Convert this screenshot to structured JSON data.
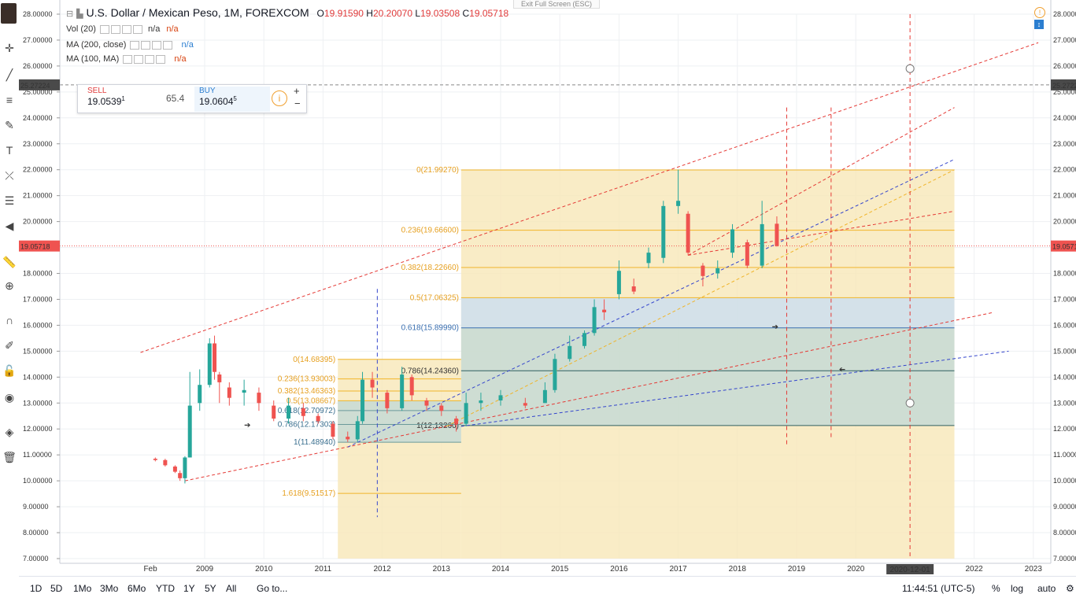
{
  "header": {
    "exit_fullscreen": "Exit Full Screen (ESC)",
    "symbol_title": "U.S. Dollar / Mexican Peso, 1M, FOREXCOM",
    "ohlc": {
      "o_label": "O",
      "o": "19.91590",
      "h_label": "H",
      "h": "20.20070",
      "l_label": "L",
      "l": "19.03508",
      "c_label": "C",
      "c": "19.05718"
    }
  },
  "studies": [
    {
      "name": "Vol (20)",
      "values": [
        "n/a",
        "n/a"
      ]
    },
    {
      "name": "MA (200, close)",
      "values": [
        "n/a"
      ]
    },
    {
      "name": "MA (100, MA)",
      "values": [
        "n/a"
      ]
    }
  ],
  "trade_panel": {
    "sell_label": "SELL",
    "sell_value": "19.0539",
    "sell_sup": "1",
    "spread": "65.4",
    "buy_label": "BUY",
    "buy_value": "19.0604",
    "buy_sup": "5"
  },
  "price_axis": {
    "labels": [
      "28.00000",
      "27.00000",
      "26.00000",
      "25.00000",
      "24.00000",
      "23.00000",
      "22.00000",
      "21.00000",
      "20.00000",
      "19.00000",
      "18.00000",
      "17.00000",
      "16.00000",
      "15.00000",
      "14.00000",
      "13.00000",
      "12.00000",
      "11.00000",
      "10.00000",
      "9.00000",
      "8.00000",
      "7.00000"
    ],
    "crosshair_price": "25.27224",
    "last_price": "19.05718"
  },
  "time_axis": {
    "labels": [
      "Feb",
      "2009",
      "2010",
      "2011",
      "2012",
      "2013",
      "2014",
      "2015",
      "2016",
      "2017",
      "2018",
      "2019",
      "2020",
      "2022",
      "2023"
    ],
    "crosshair_date": "2020-12-01"
  },
  "fib_large": [
    "0(21.99270)",
    "0.236(19.66600)",
    "0.382(18.22660)",
    "0.5(17.06325)",
    "0.618(15.89990)",
    "0.786(14.24360)",
    "1(12.13260)"
  ],
  "fib_small": [
    "0(14.68395)",
    "0.236(13.93003)",
    "0.382(13.46363)",
    "0.5(13.08667)",
    "0.618(12.70972)",
    "0.786(12.17303)",
    "1(11.48940)",
    "1.618(9.51517)"
  ],
  "chart_data": {
    "type": "candlestick",
    "symbol": "USDMXN",
    "interval": "1M",
    "ylim": [
      7,
      28
    ],
    "candles": [
      {
        "date": "2008-03",
        "o": 10.85,
        "h": 10.9,
        "l": 10.75,
        "c": 10.8
      },
      {
        "date": "2008-05",
        "o": 10.8,
        "h": 10.85,
        "l": 10.55,
        "c": 10.6
      },
      {
        "date": "2008-07",
        "o": 10.55,
        "h": 10.6,
        "l": 10.3,
        "c": 10.35
      },
      {
        "date": "2008-08",
        "o": 10.3,
        "h": 10.4,
        "l": 10.0,
        "c": 10.1
      },
      {
        "date": "2008-09",
        "o": 10.1,
        "h": 10.95,
        "l": 9.9,
        "c": 10.9
      },
      {
        "date": "2008-10",
        "o": 10.9,
        "h": 14.2,
        "l": 10.9,
        "c": 12.9
      },
      {
        "date": "2008-12",
        "o": 13.0,
        "h": 14.3,
        "l": 12.7,
        "c": 13.7
      },
      {
        "date": "2009-02",
        "o": 13.7,
        "h": 15.5,
        "l": 13.6,
        "c": 15.3
      },
      {
        "date": "2009-03",
        "o": 15.3,
        "h": 15.6,
        "l": 13.9,
        "c": 14.2
      },
      {
        "date": "2009-04",
        "o": 14.1,
        "h": 14.2,
        "l": 13.0,
        "c": 13.8
      },
      {
        "date": "2009-06",
        "o": 13.6,
        "h": 13.8,
        "l": 12.9,
        "c": 13.2
      },
      {
        "date": "2009-09",
        "o": 13.4,
        "h": 13.9,
        "l": 12.9,
        "c": 13.5
      },
      {
        "date": "2009-12",
        "o": 13.4,
        "h": 13.6,
        "l": 12.7,
        "c": 13.0
      },
      {
        "date": "2010-03",
        "o": 12.9,
        "h": 13.1,
        "l": 12.3,
        "c": 12.4
      },
      {
        "date": "2010-06",
        "o": 12.4,
        "h": 13.2,
        "l": 12.2,
        "c": 12.9
      },
      {
        "date": "2010-09",
        "o": 12.8,
        "h": 13.0,
        "l": 12.3,
        "c": 12.5
      },
      {
        "date": "2010-12",
        "o": 12.5,
        "h": 12.6,
        "l": 12.2,
        "c": 12.3
      },
      {
        "date": "2011-03",
        "o": 12.2,
        "h": 12.3,
        "l": 11.6,
        "c": 11.7
      },
      {
        "date": "2011-06",
        "o": 11.7,
        "h": 11.9,
        "l": 11.5,
        "c": 11.6
      },
      {
        "date": "2011-08",
        "o": 11.6,
        "h": 12.5,
        "l": 11.5,
        "c": 12.3
      },
      {
        "date": "2011-09",
        "o": 12.3,
        "h": 14.2,
        "l": 12.2,
        "c": 13.9
      },
      {
        "date": "2011-11",
        "o": 13.9,
        "h": 14.2,
        "l": 13.2,
        "c": 13.6
      },
      {
        "date": "2012-02",
        "o": 13.4,
        "h": 13.5,
        "l": 12.6,
        "c": 12.8
      },
      {
        "date": "2012-05",
        "o": 12.8,
        "h": 14.4,
        "l": 12.7,
        "c": 14.1
      },
      {
        "date": "2012-07",
        "o": 14.0,
        "h": 14.1,
        "l": 13.1,
        "c": 13.3
      },
      {
        "date": "2012-10",
        "o": 13.1,
        "h": 13.2,
        "l": 12.7,
        "c": 12.9
      },
      {
        "date": "2013-01",
        "o": 12.9,
        "h": 13.0,
        "l": 12.5,
        "c": 12.7
      },
      {
        "date": "2013-04",
        "o": 12.4,
        "h": 12.5,
        "l": 11.9,
        "c": 12.2
      },
      {
        "date": "2013-06",
        "o": 12.2,
        "h": 13.4,
        "l": 12.1,
        "c": 13.0
      },
      {
        "date": "2013-09",
        "o": 13.0,
        "h": 13.4,
        "l": 12.7,
        "c": 13.1
      },
      {
        "date": "2014-01",
        "o": 13.1,
        "h": 13.5,
        "l": 12.9,
        "c": 13.3
      },
      {
        "date": "2014-06",
        "o": 13.0,
        "h": 13.2,
        "l": 12.8,
        "c": 12.9
      },
      {
        "date": "2014-10",
        "o": 13.0,
        "h": 13.8,
        "l": 13.0,
        "c": 13.5
      },
      {
        "date": "2014-12",
        "o": 13.5,
        "h": 14.9,
        "l": 13.4,
        "c": 14.7
      },
      {
        "date": "2015-03",
        "o": 14.7,
        "h": 15.6,
        "l": 14.6,
        "c": 15.2
      },
      {
        "date": "2015-06",
        "o": 15.2,
        "h": 15.8,
        "l": 15.1,
        "c": 15.7
      },
      {
        "date": "2015-08",
        "o": 15.7,
        "h": 17.0,
        "l": 15.6,
        "c": 16.7
      },
      {
        "date": "2015-10",
        "o": 16.6,
        "h": 17.0,
        "l": 16.2,
        "c": 16.5
      },
      {
        "date": "2016-01",
        "o": 17.2,
        "h": 18.5,
        "l": 17.0,
        "c": 18.1
      },
      {
        "date": "2016-04",
        "o": 17.5,
        "h": 17.8,
        "l": 17.2,
        "c": 17.3
      },
      {
        "date": "2016-07",
        "o": 18.4,
        "h": 19.0,
        "l": 18.2,
        "c": 18.8
      },
      {
        "date": "2016-10",
        "o": 18.6,
        "h": 20.8,
        "l": 18.4,
        "c": 20.6
      },
      {
        "date": "2017-01",
        "o": 20.6,
        "h": 22.0,
        "l": 20.3,
        "c": 20.8
      },
      {
        "date": "2017-03",
        "o": 20.3,
        "h": 20.4,
        "l": 18.7,
        "c": 18.8
      },
      {
        "date": "2017-06",
        "o": 18.3,
        "h": 18.4,
        "l": 17.5,
        "c": 17.9
      },
      {
        "date": "2017-09",
        "o": 18.0,
        "h": 18.5,
        "l": 17.8,
        "c": 18.2
      },
      {
        "date": "2017-12",
        "o": 18.8,
        "h": 19.9,
        "l": 18.6,
        "c": 19.7
      },
      {
        "date": "2018-03",
        "o": 19.2,
        "h": 19.3,
        "l": 18.2,
        "c": 18.3
      },
      {
        "date": "2018-06",
        "o": 18.3,
        "h": 20.8,
        "l": 18.2,
        "c": 19.9
      },
      {
        "date": "2018-09",
        "o": 19.9159,
        "h": 20.2007,
        "l": 19.03508,
        "c": 19.05718
      }
    ]
  },
  "bottom_bar": {
    "ranges": [
      "1D",
      "5D",
      "1Mo",
      "3Mo",
      "6Mo",
      "YTD",
      "1Y",
      "5Y",
      "All"
    ],
    "goto": "Go to...",
    "clock": "11:44:51 (UTC-5)",
    "percent": "%",
    "log": "log",
    "auto": "auto"
  },
  "colors": {
    "up": "#26a69a",
    "down": "#ef5350",
    "fib_fill": "#f8e7b8",
    "fib_blue": "#c7ddf4",
    "trend_red": "#e53935",
    "trend_blue": "#3344cc"
  }
}
